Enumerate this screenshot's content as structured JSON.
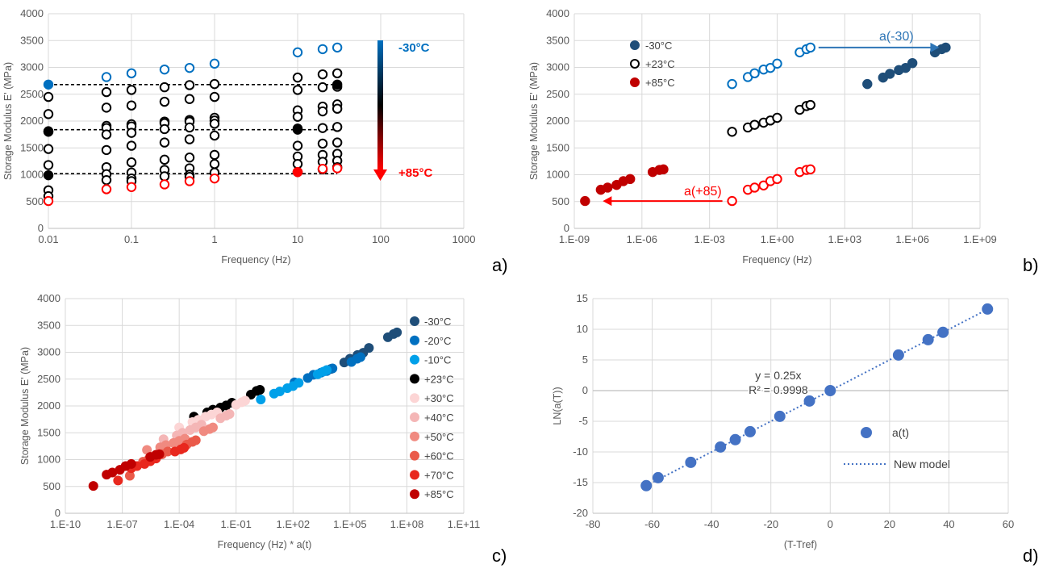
{
  "chart_data": [
    {
      "panel": "a)",
      "type": "scatter",
      "xlabel": "Frequency (Hz)",
      "ylabel": "Storage Modulus E' (MPa)",
      "xscale": "log",
      "xlim": [
        0.01,
        1000
      ],
      "ylim": [
        0,
        4000
      ],
      "xticks": [
        0.01,
        0.1,
        1,
        10,
        100,
        1000
      ],
      "xtick_labels": [
        "0.01",
        "0.1",
        "1",
        "10",
        "100",
        "1000"
      ],
      "yticks": [
        0,
        500,
        1000,
        1500,
        2000,
        2500,
        3000,
        3500,
        4000
      ],
      "ytick_labels": [
        "0",
        "500",
        "1000",
        "1500",
        "2000",
        "2500",
        "3000",
        "3500",
        "4000"
      ],
      "grid": true,
      "x": [
        0.01,
        0.05,
        0.1,
        0.25,
        0.5,
        1,
        10,
        20,
        30
      ],
      "series": [
        {
          "color": "#0070c0",
          "filled": false,
          "values": [
            null,
            2820,
            2890,
            2960,
            2990,
            3070,
            3280,
            3340,
            3370
          ]
        },
        {
          "color": "#000000",
          "filled": false,
          "values": [
            2450,
            2540,
            2580,
            2630,
            2670,
            2690,
            2810,
            2870,
            2890
          ]
        },
        {
          "color": "#000000",
          "filled": false,
          "values": [
            2130,
            2250,
            2290,
            2360,
            2410,
            2450,
            2580,
            2630,
            2640
          ]
        },
        {
          "color": "#000000",
          "filled": false,
          "values": [
            1800,
            1910,
            1940,
            1990,
            2020,
            2060,
            2200,
            2270,
            2310
          ]
        },
        {
          "color": "#000000",
          "filled": false,
          "values": [
            1480,
            1870,
            1900,
            1960,
            1990,
            2010,
            2080,
            2180,
            2230
          ]
        },
        {
          "color": "#000000",
          "filled": false,
          "values": [
            1180,
            1750,
            1780,
            1850,
            1880,
            1950,
            1860,
            1870,
            1890
          ]
        },
        {
          "color": "#000000",
          "filled": false,
          "values": [
            null,
            1460,
            1540,
            1600,
            1660,
            1730,
            1540,
            1580,
            1600
          ]
        },
        {
          "color": "#000000",
          "filled": false,
          "values": [
            null,
            1140,
            1230,
            1280,
            1320,
            1370,
            1340,
            1370,
            1390
          ]
        },
        {
          "color": "#000000",
          "filled": false,
          "values": [
            null,
            1010,
            1040,
            1090,
            1120,
            1200,
            1200,
            1240,
            1260
          ]
        },
        {
          "color": "#000000",
          "filled": false,
          "values": [
            710,
            900,
            930,
            970,
            1000,
            1040,
            1050,
            1100,
            1140
          ]
        },
        {
          "color": "#000000",
          "filled": false,
          "values": [
            600,
            null,
            880,
            null,
            960,
            null,
            null,
            null,
            null
          ]
        },
        {
          "color": "#ff0000",
          "filled": false,
          "values": [
            510,
            730,
            770,
            820,
            880,
            930,
            1050,
            1110,
            1120
          ]
        }
      ],
      "reference_points": [
        {
          "x": 0.01,
          "y": 2680,
          "color": "#0070c0",
          "filled": true
        },
        {
          "x": 0.01,
          "y": 1810,
          "color": "#000000",
          "filled": true
        },
        {
          "x": 0.01,
          "y": 990,
          "color": "#000000",
          "filled": true
        },
        {
          "x": 10,
          "y": 1840,
          "color": "#000000",
          "filled": true
        },
        {
          "x": 10,
          "y": 1050,
          "color": "#ff0000",
          "filled": true
        },
        {
          "x": 30,
          "y": 2680,
          "color": "#000000",
          "filled": true
        }
      ],
      "dashed_lines_y": [
        2680,
        1840,
        1020
      ],
      "temperature_scale": {
        "top": "-30°C",
        "bottom": "+85°C",
        "top_color": "#0070c0",
        "bottom_color": "#ff0000"
      }
    },
    {
      "panel": "b)",
      "type": "scatter",
      "xlabel": "Frequency (Hz)",
      "ylabel": "Storage Modulus E' (MPa)",
      "xscale": "log",
      "xlim": [
        1e-09,
        1000000000.0
      ],
      "ylim": [
        0,
        4000
      ],
      "xticks": [
        1e-09,
        1e-06,
        0.001,
        1,
        1000,
        1000000.0,
        1000000000.0
      ],
      "xtick_labels": [
        "1.E-09",
        "1.E-06",
        "1.E-03",
        "1.E+00",
        "1.E+03",
        "1.E+06",
        "1.E+09"
      ],
      "yticks": [
        0,
        500,
        1000,
        1500,
        2000,
        2500,
        3000,
        3500,
        4000
      ],
      "ytick_labels": [
        "0",
        "500",
        "1000",
        "1500",
        "2000",
        "2500",
        "3000",
        "3500",
        "4000"
      ],
      "grid": true,
      "legend": {
        "position": "top-left",
        "entries": [
          "-30°C",
          "+23°C",
          "+85°C"
        ]
      },
      "series": [
        {
          "name": "-30°C",
          "color": "#0070c0",
          "filled": false,
          "x": [
            0.01,
            0.05,
            0.1,
            0.25,
            0.5,
            1,
            10,
            20,
            30
          ],
          "y": [
            2690,
            2820,
            2890,
            2960,
            2990,
            3070,
            3280,
            3340,
            3370
          ]
        },
        {
          "name": "-30°C",
          "color": "#1f4e79",
          "filled": true,
          "x": [
            10000,
            50000,
            100000,
            250000,
            500000,
            1000000,
            10000000,
            20000000,
            30000000
          ],
          "y": [
            2690,
            2810,
            2880,
            2950,
            2990,
            3080,
            3280,
            3340,
            3370
          ]
        },
        {
          "name": "+23°C",
          "color": "#000000",
          "filled": false,
          "x": [
            0.01,
            0.05,
            0.1,
            0.25,
            0.5,
            1,
            10,
            20,
            30
          ],
          "y": [
            1800,
            1880,
            1930,
            1970,
            2010,
            2060,
            2210,
            2280,
            2300
          ]
        },
        {
          "name": "+85°C",
          "color": "#ff0000",
          "filled": false,
          "x": [
            0.01,
            0.05,
            0.1,
            0.25,
            0.5,
            1,
            10,
            20,
            30
          ],
          "y": [
            510,
            720,
            760,
            800,
            880,
            920,
            1050,
            1090,
            1100
          ]
        },
        {
          "name": "+85°C",
          "color": "#c00000",
          "filled": true,
          "x": [
            3e-09,
            1.5e-08,
            3e-08,
            7.5e-08,
            1.5e-07,
            3e-07,
            3e-06,
            6e-06,
            9e-06
          ],
          "y": [
            510,
            720,
            760,
            810,
            880,
            920,
            1050,
            1090,
            1100
          ]
        }
      ],
      "annotations": [
        {
          "text": "a(-30)",
          "color": "#2e75b6",
          "from": [
            30,
            3370
          ],
          "to": [
            30000000,
            3370
          ]
        },
        {
          "text": "a(+85)",
          "color": "#ff0000",
          "from": [
            0.01,
            510
          ],
          "to": [
            3e-09,
            510
          ]
        }
      ]
    },
    {
      "panel": "c)",
      "type": "scatter",
      "xlabel": "Frequency (Hz) * a(t)",
      "ylabel": "Storage Modulus E' (MPa)",
      "xscale": "log",
      "xlim": [
        1e-10,
        100000000000.0
      ],
      "ylim": [
        0,
        4000
      ],
      "xticks": [
        1e-10,
        1e-07,
        0.0001,
        0.1,
        100,
        100000,
        100000000.0,
        100000000000.0
      ],
      "xtick_labels": [
        "1.E-10",
        "1.E-07",
        "1.E-04",
        "1.E-01",
        "1.E+02",
        "1.E+05",
        "1.E+08",
        "1.E+11"
      ],
      "yticks": [
        0,
        500,
        1000,
        1500,
        2000,
        2500,
        3000,
        3500,
        4000
      ],
      "ytick_labels": [
        "0",
        "500",
        "1000",
        "1500",
        "2000",
        "2500",
        "3000",
        "3500",
        "4000"
      ],
      "grid": true,
      "legend": {
        "position": "right",
        "entries": [
          "-30°C",
          "-20°C",
          "-10°C",
          "+23°C",
          "+30°C",
          "+40°C",
          "+50°C",
          "+60°C",
          "+70°C",
          "+85°C"
        ]
      },
      "series": [
        {
          "name": "-30°C",
          "color": "#1f4e79",
          "x": [
            10000,
            50000,
            100000,
            250000,
            500000,
            1000000,
            10000000,
            20000000,
            30000000
          ],
          "y": [
            2690,
            2810,
            2880,
            2950,
            2990,
            3080,
            3280,
            3340,
            3370
          ]
        },
        {
          "name": "-20°C",
          "color": "#0070c0",
          "x": [
            120,
            600,
            1200,
            3000,
            6000,
            12000,
            120000,
            240000,
            360000
          ],
          "y": [
            2440,
            2520,
            2580,
            2620,
            2650,
            2700,
            2820,
            2880,
            2910
          ]
        },
        {
          "name": "-10°C",
          "color": "#00a0e9",
          "x": [
            2,
            10,
            20,
            50,
            100,
            200,
            2000,
            4000,
            6000
          ],
          "y": [
            2120,
            2230,
            2270,
            2330,
            2370,
            2430,
            2590,
            2640,
            2670
          ]
        },
        {
          "name": "+23°C",
          "color": "#000000",
          "x": [
            0.0006,
            0.003,
            0.006,
            0.015,
            0.03,
            0.06,
            0.6,
            1.2,
            1.8
          ],
          "y": [
            1800,
            1880,
            1930,
            1970,
            2010,
            2060,
            2210,
            2280,
            2300
          ]
        },
        {
          "name": "+30°C",
          "color": "#fcd5d5",
          "x": [
            0.0001,
            0.0005,
            0.001,
            0.0025,
            0.005,
            0.01,
            0.1,
            0.2,
            0.3
          ],
          "y": [
            1600,
            1700,
            1740,
            1800,
            1840,
            1880,
            2020,
            2070,
            2100
          ]
        },
        {
          "name": "+40°C",
          "color": "#f4b6b6",
          "x": [
            1.5e-05,
            7.5e-05,
            0.00015,
            0.000375,
            0.00075,
            0.0015,
            0.015,
            0.03,
            0.045
          ],
          "y": [
            1380,
            1450,
            1500,
            1550,
            1600,
            1650,
            1770,
            1820,
            1850
          ]
        },
        {
          "name": "+50°C",
          "color": "#f08a80",
          "x": [
            2e-06,
            1e-05,
            2e-05,
            5e-05,
            0.0001,
            0.0002,
            0.002,
            0.004,
            0.006
          ],
          "y": [
            1180,
            1230,
            1270,
            1310,
            1350,
            1390,
            1530,
            1570,
            1600
          ]
        },
        {
          "name": "+60°C",
          "color": "#ea5a4a",
          "x": [
            2.5e-07,
            1.25e-06,
            2.5e-06,
            6.25e-06,
            1.25e-05,
            2.5e-05,
            0.00025,
            0.0005,
            0.00075
          ],
          "y": [
            700,
            960,
            1010,
            1060,
            1100,
            1150,
            1280,
            1330,
            1360
          ]
        },
        {
          "name": "+70°C",
          "color": "#e8281e",
          "x": [
            6e-08,
            3e-07,
            6e-07,
            1.5e-06,
            3e-06,
            6e-06,
            6e-05,
            0.00012,
            0.00018
          ],
          "y": [
            610,
            840,
            880,
            920,
            970,
            1020,
            1150,
            1190,
            1220
          ]
        },
        {
          "name": "+85°C",
          "color": "#c00000",
          "x": [
            3e-09,
            1.5e-08,
            3e-08,
            7.5e-08,
            1.5e-07,
            3e-07,
            3e-06,
            6e-06,
            9e-06
          ],
          "y": [
            510,
            720,
            760,
            810,
            880,
            920,
            1050,
            1090,
            1100
          ]
        }
      ]
    },
    {
      "panel": "d)",
      "type": "scatter",
      "xlabel": "(T-Tref)",
      "ylabel": "LN(a(T))",
      "xlim": [
        -80,
        60
      ],
      "ylim": [
        -20,
        15
      ],
      "xticks": [
        -80,
        -60,
        -40,
        -20,
        0,
        20,
        40,
        60
      ],
      "xtick_labels": [
        "-80",
        "-60",
        "-40",
        "-20",
        "0",
        "20",
        "40",
        "60"
      ],
      "yticks": [
        -20,
        -15,
        -10,
        -5,
        0,
        5,
        10,
        15
      ],
      "ytick_labels": [
        "-20",
        "-15",
        "-10",
        "-5",
        "0",
        "5",
        "10",
        "15"
      ],
      "grid": true,
      "legend": {
        "position": "bottom-right",
        "entries": [
          "a(t)",
          "New model"
        ]
      },
      "series": [
        {
          "name": "a(t)",
          "color": "#4472c4",
          "x": [
            -62,
            -58,
            -47,
            -37,
            -32,
            -27,
            -17,
            -7,
            0,
            23,
            33,
            38,
            53
          ],
          "y": [
            -15.5,
            -14.2,
            -11.7,
            -9.2,
            -8.0,
            -6.7,
            -4.2,
            -1.7,
            0,
            5.8,
            8.3,
            9.5,
            13.3
          ]
        },
        {
          "name": "New model",
          "type": "line",
          "style": "dotted",
          "color": "#4472c4",
          "x": [
            -62,
            53
          ],
          "y": [
            -15.5,
            13.25
          ]
        }
      ],
      "annotations": [
        {
          "text": "y = 0.25x",
          "x": -17.5,
          "y": 2.4
        },
        {
          "text": "R² = 0.9998",
          "x": -17.5,
          "y": 0
        }
      ]
    }
  ]
}
